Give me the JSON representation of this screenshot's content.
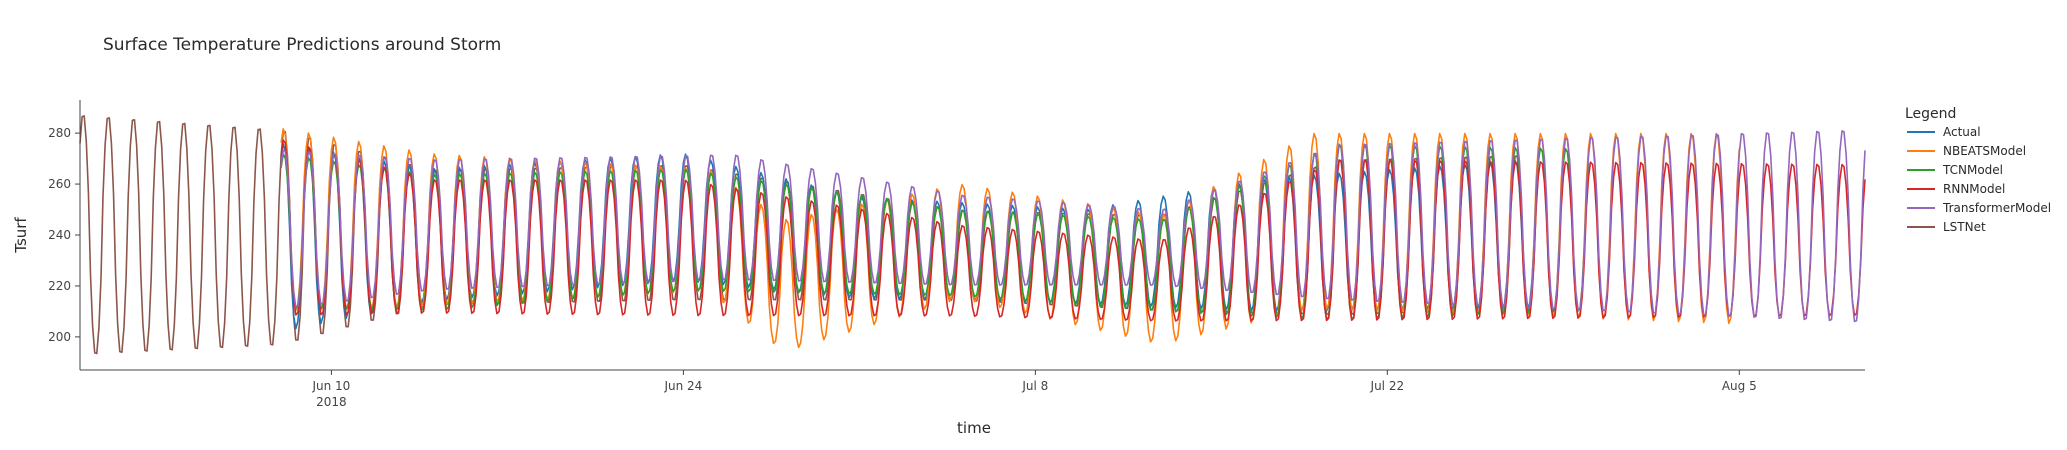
{
  "chart_data": {
    "type": "line",
    "title": "Surface Temperature Predictions around Storm",
    "xlabel": "time",
    "ylabel": "Tsurf",
    "x_range": [
      "2018-05-31",
      "2018-08-10"
    ],
    "ylim": [
      187,
      293
    ],
    "y_ticks": [
      200,
      220,
      240,
      260,
      280
    ],
    "x_ticks": [
      {
        "date": "2018-06-10",
        "label": "Jun 10",
        "sublabel": "2018"
      },
      {
        "date": "2018-06-24",
        "label": "Jun 24",
        "sublabel": ""
      },
      {
        "date": "2018-07-08",
        "label": "Jul 8",
        "sublabel": ""
      },
      {
        "date": "2018-07-22",
        "label": "Jul 22",
        "sublabel": ""
      },
      {
        "date": "2018-08-05",
        "label": "Aug 5",
        "sublabel": ""
      }
    ],
    "grid": false,
    "legend_title": "Legend",
    "legend_position": "right",
    "series": [
      {
        "name": "Actual",
        "color": "#1f77b4",
        "start": "2018-06-08",
        "end": "2018-07-28",
        "envelope": [
          {
            "date": "2018-06-08",
            "min": 202,
            "max": 276
          },
          {
            "date": "2018-06-14",
            "min": 214,
            "max": 266
          },
          {
            "date": "2018-06-24",
            "min": 222,
            "max": 272
          },
          {
            "date": "2018-07-01",
            "min": 215,
            "max": 255
          },
          {
            "date": "2018-07-10",
            "min": 213,
            "max": 250
          },
          {
            "date": "2018-07-17",
            "min": 210,
            "max": 262
          },
          {
            "date": "2018-07-28",
            "min": 211,
            "max": 270
          }
        ]
      },
      {
        "name": "NBEATSModel",
        "color": "#ff7f0e",
        "start": "2018-06-08",
        "end": "2018-08-05",
        "envelope": [
          {
            "date": "2018-06-08",
            "min": 210,
            "max": 282
          },
          {
            "date": "2018-06-14",
            "min": 212,
            "max": 272
          },
          {
            "date": "2018-06-25",
            "min": 218,
            "max": 266
          },
          {
            "date": "2018-06-28",
            "min": 194,
            "max": 246
          },
          {
            "date": "2018-07-05",
            "min": 215,
            "max": 260
          },
          {
            "date": "2018-07-13",
            "min": 197,
            "max": 248
          },
          {
            "date": "2018-07-19",
            "min": 211,
            "max": 280
          },
          {
            "date": "2018-08-05",
            "min": 205,
            "max": 280
          }
        ]
      },
      {
        "name": "TCNModel",
        "color": "#2ca02c",
        "start": "2018-06-08",
        "end": "2018-07-30",
        "envelope": [
          {
            "date": "2018-06-08",
            "min": 211,
            "max": 272
          },
          {
            "date": "2018-06-14",
            "min": 210,
            "max": 264
          },
          {
            "date": "2018-06-24",
            "min": 218,
            "max": 266
          },
          {
            "date": "2018-07-05",
            "min": 216,
            "max": 250
          },
          {
            "date": "2018-07-13",
            "min": 210,
            "max": 246
          },
          {
            "date": "2018-07-20",
            "min": 206,
            "max": 276
          },
          {
            "date": "2018-07-30",
            "min": 210,
            "max": 274
          }
        ]
      },
      {
        "name": "RNNModel",
        "color": "#d62728",
        "start": "2018-06-08",
        "end": "2018-08-10",
        "envelope": [
          {
            "date": "2018-06-08",
            "min": 208,
            "max": 278
          },
          {
            "date": "2018-06-14",
            "min": 209,
            "max": 262
          },
          {
            "date": "2018-06-24",
            "min": 208,
            "max": 262
          },
          {
            "date": "2018-07-05",
            "min": 208,
            "max": 244
          },
          {
            "date": "2018-07-13",
            "min": 206,
            "max": 238
          },
          {
            "date": "2018-07-20",
            "min": 206,
            "max": 270
          },
          {
            "date": "2018-08-10",
            "min": 208,
            "max": 268
          }
        ]
      },
      {
        "name": "TransformerModel",
        "color": "#9467bd",
        "start": "2018-06-08",
        "end": "2018-08-10",
        "envelope": [
          {
            "date": "2018-06-08",
            "min": 210,
            "max": 274
          },
          {
            "date": "2018-06-14",
            "min": 218,
            "max": 270
          },
          {
            "date": "2018-06-26",
            "min": 222,
            "max": 272
          },
          {
            "date": "2018-07-05",
            "min": 220,
            "max": 256
          },
          {
            "date": "2018-07-13",
            "min": 220,
            "max": 250
          },
          {
            "date": "2018-07-20",
            "min": 214,
            "max": 276
          },
          {
            "date": "2018-08-10",
            "min": 205,
            "max": 282
          }
        ]
      },
      {
        "name": "LSTNet",
        "color": "#8c564b",
        "start": "2018-05-31",
        "end": "2018-07-28",
        "envelope": [
          {
            "date": "2018-05-31",
            "min": 192,
            "max": 288
          },
          {
            "date": "2018-06-08",
            "min": 196,
            "max": 282
          },
          {
            "date": "2018-06-14",
            "min": 212,
            "max": 266
          },
          {
            "date": "2018-06-24",
            "min": 214,
            "max": 268
          },
          {
            "date": "2018-07-05",
            "min": 214,
            "max": 250
          },
          {
            "date": "2018-07-13",
            "min": 210,
            "max": 248
          },
          {
            "date": "2018-07-20",
            "min": 208,
            "max": 270
          },
          {
            "date": "2018-07-28",
            "min": 210,
            "max": 272
          }
        ]
      }
    ]
  }
}
